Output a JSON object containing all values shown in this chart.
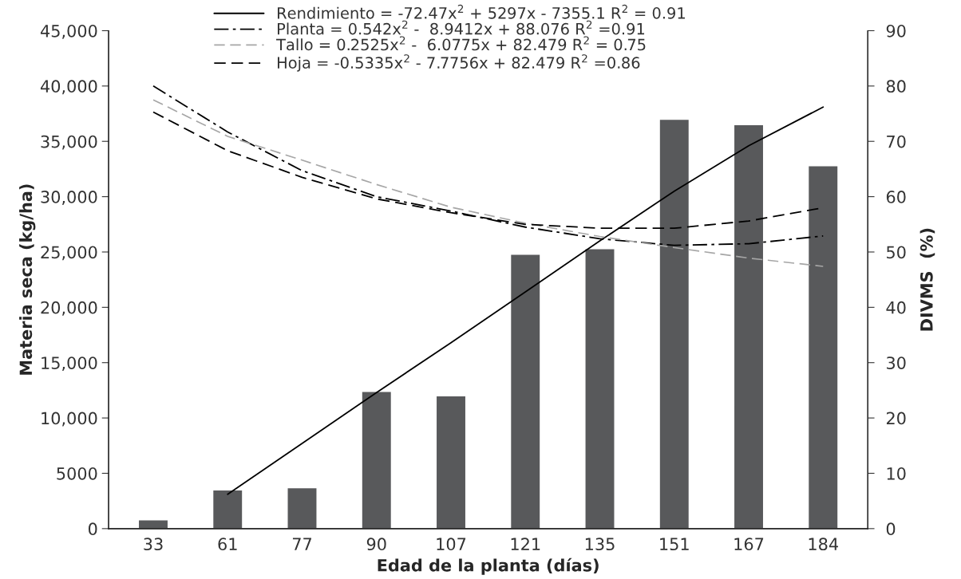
{
  "chart_data": {
    "type": "bar",
    "xlabel": "Edad de la planta (días)",
    "ylabel": "Materia seca (kg/ha)",
    "y2label": "DIVMS  (%)",
    "categories": [
      "33",
      "61",
      "77",
      "90",
      "107",
      "121",
      "135",
      "151",
      "167",
      "184"
    ],
    "series": [
      {
        "color": "#58595b",
        "values": [
          800,
          3500,
          3700,
          12400,
          12000,
          24800,
          25300,
          37000,
          36500,
          32800
        ]
      },
      {
        "type": "line",
        "name": "Rendimiento = -72.47x$^{2}$ + 5297x - 7355.1 R$^{2}$ = 0.91",
        "color": "#000000",
        "line_style": "solid",
        "values": [
          null,
          3100,
          7700,
          12300,
          16800,
          21400,
          26000,
          30500,
          34600,
          38100
        ]
      },
      {
        "type": "line",
        "axis": "y2",
        "name": "Planta = 0.542x$^{2}$ -  8.9412x + 88.076 R$^{2}$ =0.91",
        "color": "#000000",
        "line_style": "dashdot",
        "values": [
          80,
          71.7,
          64.7,
          60,
          57.4,
          54.5,
          52.4,
          51.2,
          51.5,
          52.9
        ]
      },
      {
        "type": "line",
        "axis": "y2",
        "name": "Tallo = 0.2525x$^{2}$ -  6.0775x + 82.479 R$^{2}$ = 0.75",
        "color": "#a6a6a6",
        "line_style": "dashed",
        "values": [
          77.5,
          70.9,
          66.6,
          62.2,
          58.1,
          55.2,
          52.8,
          50.8,
          48.9,
          47.4
        ]
      },
      {
        "type": "line",
        "axis": "y2",
        "name": "Hoja = -0.5335x$^{2}$ - 7.7756x + 82.479 R$^{2}$ =0.86",
        "color": "#000000",
        "line_style": "dashed",
        "values": [
          75.3,
          68.3,
          63.5,
          59.6,
          57.1,
          55.0,
          54.3,
          54.3,
          55.6,
          58.0
        ]
      }
    ],
    "ylim": [
      0,
      45000
    ],
    "yticks": [
      0,
      5000,
      {
        "value": 10000,
        "label": "10,000"
      },
      {
        "value": 15000,
        "label": "15,000"
      },
      {
        "value": 20000,
        "label": "20,000"
      },
      {
        "value": 25000,
        "label": "25,000"
      },
      {
        "value": 30000,
        "label": "30,000"
      },
      {
        "value": 35000,
        "label": "35,000"
      },
      {
        "value": 40000,
        "label": "40,000"
      },
      {
        "value": 45000,
        "label": "45,000"
      }
    ],
    "y2lim": [
      0,
      90
    ],
    "y2ticks": [
      0,
      10,
      20,
      30,
      40,
      50,
      60,
      70,
      80,
      90
    ],
    "legend": "top",
    "grid": false
  }
}
